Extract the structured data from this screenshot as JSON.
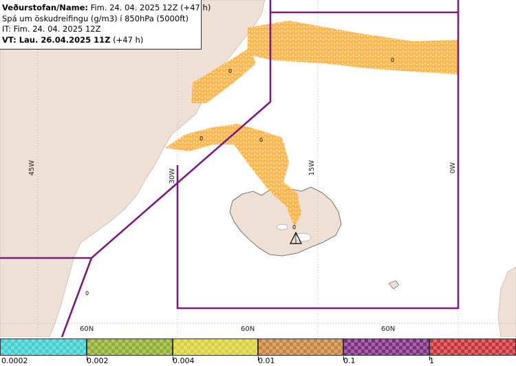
{
  "header": {
    "line1_bold": "Veðurstofan/Name:",
    "line1_rest": " Fim. 24. 04. 2025 12Z (+47 h)",
    "line2": "Spá um öskudreifingu (g/m3) í 850hPa (5000ft)",
    "line3": "IT: Fim. 24. 04. 2025 12Z",
    "line4_bold": "VT: Lau. 26.04.2025 11Z",
    "line4_rest": " (+47 h)"
  },
  "map": {
    "longitude_labels": [
      "45W",
      "30W",
      "15W",
      "0W"
    ],
    "latitude_labels": [
      "60N",
      "60N",
      "60N"
    ],
    "contour_labels": [
      "0",
      "0",
      "0",
      "0",
      "0",
      "0"
    ],
    "colors": {
      "land": "#efe0d5",
      "sea": "#ffffff",
      "ash": "#ffb347",
      "ash_light": "#ffd9a0",
      "boundary": "#7a1a80",
      "grid": "#999999"
    }
  },
  "legend": {
    "ticks": [
      "0.0002",
      "0.002",
      "0.004",
      "0.01",
      "0.1",
      "1"
    ],
    "colors": [
      "#3fcfcf",
      "#8fae2e",
      "#d8d23a",
      "#c8843a",
      "#7f2d80",
      "#c8303a"
    ]
  }
}
